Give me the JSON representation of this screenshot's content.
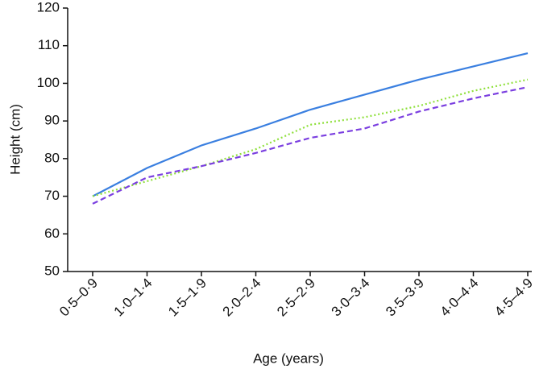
{
  "chart_data": {
    "type": "line",
    "x_label": "Age (years)",
    "y_label": "Height (cm)",
    "categories": [
      "0·5–0·9",
      "1·0–1·4",
      "1·5–1·9",
      "2·0–2·4",
      "2·5–2·9",
      "3·0–3·4",
      "3·5–3·9",
      "4·0–4·4",
      "4·5–4·9"
    ],
    "series": [
      {
        "color": "#3a7fe0",
        "dash": "solid",
        "values": [
          70,
          77.5,
          83.5,
          88,
          93,
          97,
          101,
          104.5,
          108
        ]
      },
      {
        "color": "#8fe03c",
        "dash": "dotted",
        "values": [
          70,
          74,
          78,
          82.5,
          89,
          91,
          94,
          98,
          101
        ]
      },
      {
        "color": "#7b3fe0",
        "dash": "dashed",
        "values": [
          68,
          75,
          78,
          81.5,
          85.5,
          88,
          92.5,
          96,
          99
        ]
      }
    ],
    "ylim": [
      50,
      120
    ],
    "yticks": [
      50,
      60,
      70,
      80,
      90,
      100,
      110,
      120
    ]
  }
}
